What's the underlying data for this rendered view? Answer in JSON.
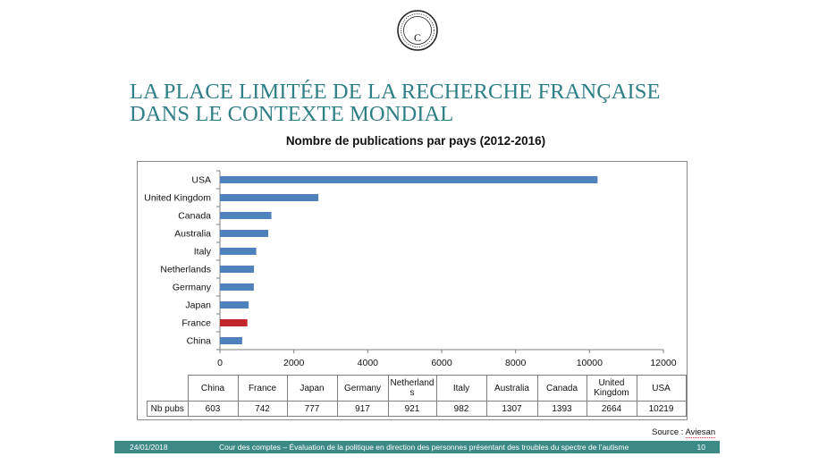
{
  "title": {
    "line1": "LA PLACE LIMITÉE DE LA RECHERCHE FRANÇAISE",
    "line2": "DANS LE CONTEXTE MONDIAL"
  },
  "chart_data": {
    "type": "bar",
    "orientation": "horizontal",
    "title": "Nombre de publications par pays (2012-2016)",
    "categories": [
      "USA",
      "United Kingdom",
      "Canada",
      "Australia",
      "Italy",
      "Netherlands",
      "Germany",
      "Japan",
      "France",
      "China"
    ],
    "values": [
      10219,
      2664,
      1393,
      1307,
      982,
      921,
      917,
      777,
      742,
      603
    ],
    "highlight": "France",
    "colors": {
      "bar": "#4f81bd",
      "highlight": "#c0262c"
    },
    "xlim": [
      0,
      12000
    ],
    "xticks": [
      0,
      2000,
      4000,
      6000,
      8000,
      10000,
      12000
    ],
    "grid": false,
    "legend": "none"
  },
  "table": {
    "row_label": "Nb pubs",
    "headers": [
      "China",
      "France",
      "Japan",
      "Germany",
      "Netherland\ns",
      "Italy",
      "Australia",
      "Canada",
      "United\nKingdom",
      "USA"
    ],
    "values": [
      "603",
      "742",
      "777",
      "917",
      "921",
      "982",
      "1307",
      "1393",
      "2664",
      "10219"
    ]
  },
  "source": {
    "prefix": "Source : ",
    "name": "Aviesan"
  },
  "footer": {
    "date": "24/01/2018",
    "description": "Cour des comptes – Évaluation de la politique en direction des personnes présentant des troubles du spectre de l’autisme",
    "page": "10"
  },
  "colors": {
    "title": "#2f7f86",
    "footer": "#3c8a86"
  },
  "logo": {
    "letter": "C"
  }
}
